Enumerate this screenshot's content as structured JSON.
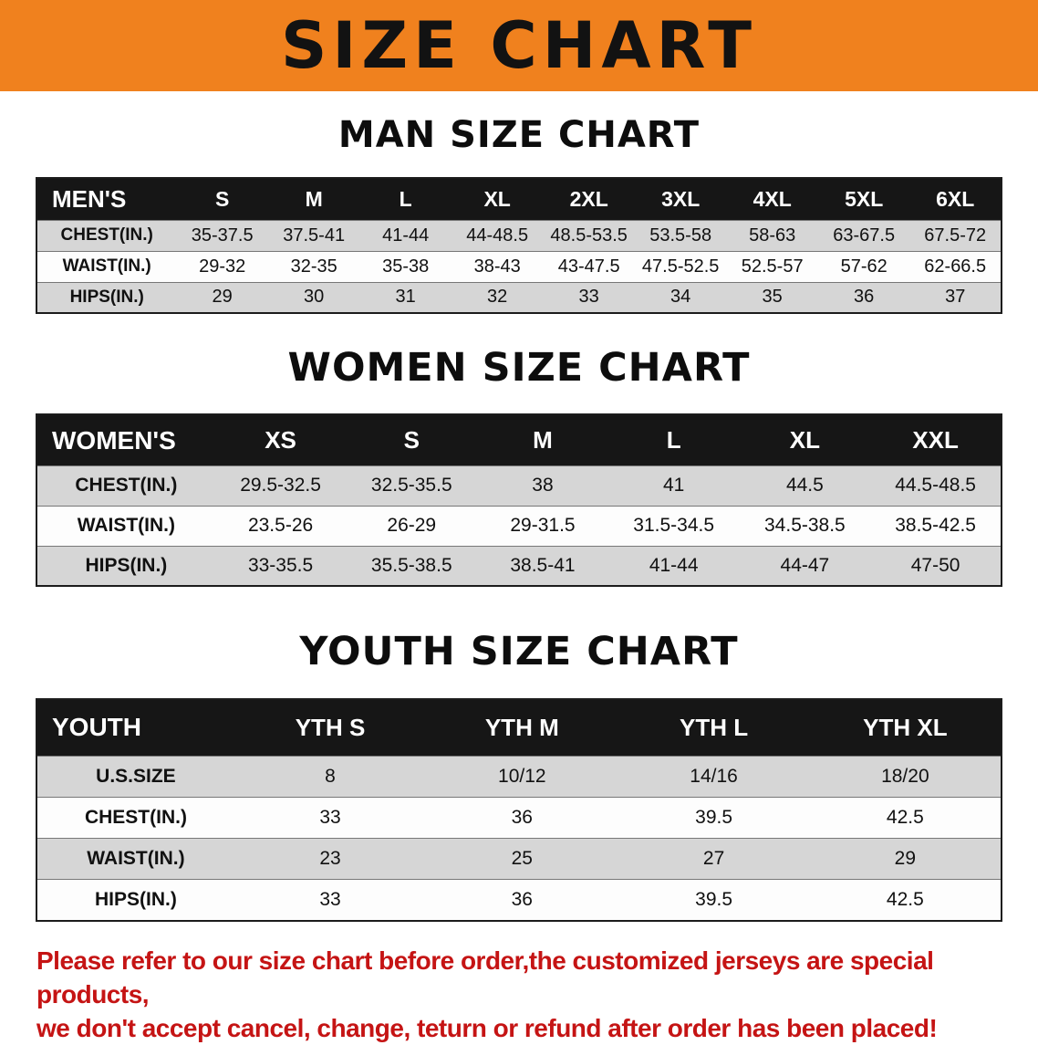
{
  "banner": {
    "title": "SIZE CHART"
  },
  "colors": {
    "banner_bg": "#f0811e",
    "header_bg": "#161616",
    "row_alt": "#d6d6d6",
    "footer_text": "#c51414"
  },
  "sections": {
    "men": {
      "heading": "MAN SIZE CHART",
      "table": {
        "header": [
          "MEN'S",
          "S",
          "M",
          "L",
          "XL",
          "2XL",
          "3XL",
          "4XL",
          "5XL",
          "6XL"
        ],
        "rows": [
          [
            "CHEST(IN.)",
            "35-37.5",
            "37.5-41",
            "41-44",
            "44-48.5",
            "48.5-53.5",
            "53.5-58",
            "58-63",
            "63-67.5",
            "67.5-72"
          ],
          [
            "WAIST(IN.)",
            "29-32",
            "32-35",
            "35-38",
            "38-43",
            "43-47.5",
            "47.5-52.5",
            "52.5-57",
            "57-62",
            "62-66.5"
          ],
          [
            "HIPS(IN.)",
            "29",
            "30",
            "31",
            "32",
            "33",
            "34",
            "35",
            "36",
            "37"
          ]
        ]
      }
    },
    "women": {
      "heading": "WOMEN SIZE CHART",
      "table": {
        "header": [
          "WOMEN'S",
          "XS",
          "S",
          "M",
          "L",
          "XL",
          "XXL"
        ],
        "rows": [
          [
            "CHEST(IN.)",
            "29.5-32.5",
            "32.5-35.5",
            "38",
            "41",
            "44.5",
            "44.5-48.5"
          ],
          [
            "WAIST(IN.)",
            "23.5-26",
            "26-29",
            "29-31.5",
            "31.5-34.5",
            "34.5-38.5",
            "38.5-42.5"
          ],
          [
            "HIPS(IN.)",
            "33-35.5",
            "35.5-38.5",
            "38.5-41",
            "41-44",
            "44-47",
            "47-50"
          ]
        ]
      }
    },
    "youth": {
      "heading": "YOUTH SIZE CHART",
      "table": {
        "header": [
          "YOUTH",
          "YTH S",
          "YTH M",
          "YTH L",
          "YTH XL"
        ],
        "rows": [
          [
            "U.S.SIZE",
            "8",
            "10/12",
            "14/16",
            "18/20"
          ],
          [
            "CHEST(IN.)",
            "33",
            "36",
            "39.5",
            "42.5"
          ],
          [
            "WAIST(IN.)",
            "23",
            "25",
            "27",
            "29"
          ],
          [
            "HIPS(IN.)",
            "33",
            "36",
            "39.5",
            "42.5"
          ]
        ]
      }
    }
  },
  "footer": {
    "line1": "Please refer to our size chart before order,the customized jerseys are special products,",
    "line2": "we don't accept cancel, change, teturn or refund after order has been placed!"
  }
}
